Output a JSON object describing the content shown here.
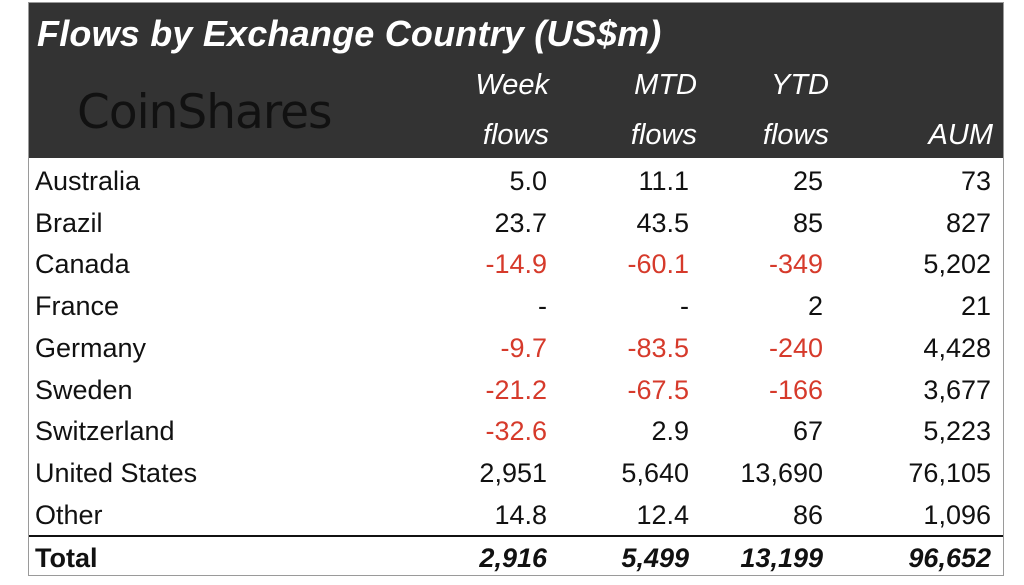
{
  "title": "Flows by Exchange Country (US$m)",
  "logo": "CoinShares",
  "columns": [
    {
      "line1": "Week",
      "line2": "flows"
    },
    {
      "line1": "MTD",
      "line2": "flows"
    },
    {
      "line1": "YTD",
      "line2": "flows"
    },
    {
      "line1": "",
      "line2": "AUM"
    }
  ],
  "rows": [
    {
      "country": "Australia",
      "week": "5.0",
      "mtd": "11.1",
      "ytd": "25",
      "aum": "73"
    },
    {
      "country": "Brazil",
      "week": "23.7",
      "mtd": "43.5",
      "ytd": "85",
      "aum": "827"
    },
    {
      "country": "Canada",
      "week": "-14.9",
      "mtd": "-60.1",
      "ytd": "-349",
      "aum": "5,202"
    },
    {
      "country": "France",
      "week": "-",
      "mtd": "-",
      "ytd": "2",
      "aum": "21"
    },
    {
      "country": "Germany",
      "week": "-9.7",
      "mtd": "-83.5",
      "ytd": "-240",
      "aum": "4,428"
    },
    {
      "country": "Sweden",
      "week": "-21.2",
      "mtd": "-67.5",
      "ytd": "-166",
      "aum": "3,677"
    },
    {
      "country": "Switzerland",
      "week": "-32.6",
      "mtd": "2.9",
      "ytd": "67",
      "aum": "5,223"
    },
    {
      "country": "United States",
      "week": "2,951",
      "mtd": "5,640",
      "ytd": "13,690",
      "aum": "76,105"
    },
    {
      "country": "Other",
      "week": "14.8",
      "mtd": "12.4",
      "ytd": "86",
      "aum": "1,096"
    }
  ],
  "total": {
    "country": "Total",
    "week": "2,916",
    "mtd": "5,499",
    "ytd": "13,199",
    "aum": "96,652"
  },
  "colors": {
    "header_bg": "#333333",
    "negative": "#d63a2b"
  }
}
